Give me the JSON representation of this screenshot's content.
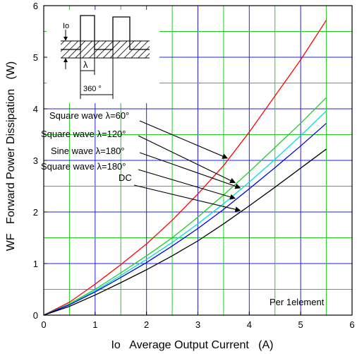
{
  "chart_data": {
    "type": "line",
    "xlabel": "Io   Average Output Current   (A)",
    "ylabel": "WF   Forward Power Dissipation   (W)",
    "xlim": [
      0,
      6
    ],
    "ylim": [
      0,
      6
    ],
    "x_ticks": [
      "0",
      "1",
      "2",
      "3",
      "4",
      "5",
      "6"
    ],
    "y_ticks": [
      "0",
      "1",
      "2",
      "3",
      "4",
      "5",
      "6"
    ],
    "grid": true,
    "colors": {
      "major_grid": "#2222dd",
      "minor_grid": "#22cc22"
    },
    "series": [
      {
        "name": "Square wave λ=60°",
        "color": "#ff0000",
        "x": [
          0,
          0.5,
          1,
          1.5,
          2,
          2.5,
          3,
          3.5,
          4,
          4.5,
          5,
          5.5
        ],
        "y": [
          0,
          0.25,
          0.6,
          0.98,
          1.38,
          1.84,
          2.35,
          2.9,
          3.55,
          4.25,
          4.95,
          5.72
        ]
      },
      {
        "name": "Square wave λ=120°",
        "color": "#22cc22",
        "x": [
          0,
          0.5,
          1,
          1.5,
          2,
          2.5,
          3,
          3.5,
          4,
          4.5,
          5,
          5.5
        ],
        "y": [
          0,
          0.22,
          0.5,
          0.82,
          1.15,
          1.5,
          1.9,
          2.33,
          2.78,
          3.25,
          3.72,
          4.22
        ]
      },
      {
        "name": "Sine wave λ=180°",
        "color": "#00dddd",
        "x": [
          0,
          0.5,
          1,
          1.5,
          2,
          2.5,
          3,
          3.5,
          4,
          4.5,
          5,
          5.5
        ],
        "y": [
          0,
          0.21,
          0.47,
          0.77,
          1.08,
          1.41,
          1.77,
          2.16,
          2.58,
          3.02,
          3.48,
          3.96
        ]
      },
      {
        "name": "Square wave λ=180°",
        "color": "#0000dd",
        "x": [
          0,
          0.5,
          1,
          1.5,
          2,
          2.5,
          3,
          3.5,
          4,
          4.5,
          5,
          5.5
        ],
        "y": [
          0,
          0.2,
          0.45,
          0.73,
          1.02,
          1.34,
          1.68,
          2.05,
          2.45,
          2.86,
          3.28,
          3.72
        ]
      },
      {
        "name": "DC",
        "color": "#000000",
        "x": [
          0,
          0.5,
          1,
          1.5,
          2,
          2.5,
          3,
          3.5,
          4,
          4.5,
          5,
          5.5
        ],
        "y": [
          0,
          0.17,
          0.39,
          0.63,
          0.88,
          1.15,
          1.44,
          1.77,
          2.12,
          2.48,
          2.85,
          3.22
        ]
      }
    ],
    "annotations": {
      "note": "Per 1element",
      "inset": {
        "io": "Io",
        "lambda": "λ",
        "period": "360 °"
      }
    }
  }
}
